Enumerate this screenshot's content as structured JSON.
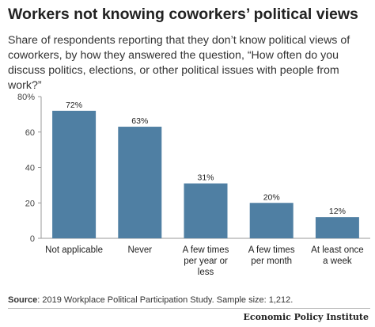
{
  "title": "Workers not knowing coworkers’ political views",
  "subtitle": "Share of respondents reporting that they don’t know political views of coworkers, by how they answered the question, “How often do you discuss politics, elections, or other political issues with people from work?”",
  "source": {
    "label": "Source",
    "text": ": 2019 Workplace Political Participation Study. Sample size: 1,212."
  },
  "logo": "Economic Policy Institute",
  "colors": {
    "bar": "#4f7fa3",
    "axis": "#999999",
    "text": "#222222"
  },
  "chart_data": {
    "type": "bar",
    "categories": [
      [
        "Not applicable"
      ],
      [
        "Never"
      ],
      [
        "A few times",
        "per year or",
        "less"
      ],
      [
        "A few times",
        "per month"
      ],
      [
        "At least once",
        "a week"
      ]
    ],
    "values": [
      72,
      63,
      31,
      20,
      12
    ],
    "value_labels": [
      "72%",
      "63%",
      "31%",
      "20%",
      "12%"
    ],
    "yticks": [
      0,
      20,
      40,
      60,
      80
    ],
    "ytick_labels": [
      "0",
      "20",
      "40",
      "60",
      "80%"
    ],
    "ylim": [
      0,
      80
    ],
    "grid": false,
    "legend": "none"
  }
}
